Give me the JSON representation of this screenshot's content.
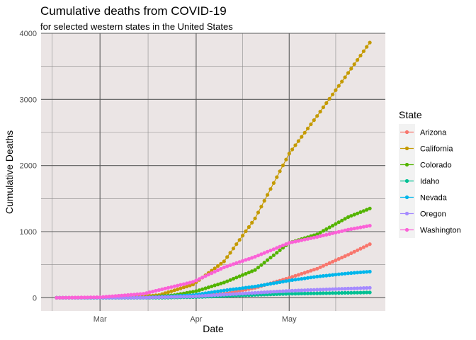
{
  "chart_data": {
    "type": "line",
    "title": "Cumulative deaths from COVID-19",
    "subtitle": "for selected western states in the United States",
    "xlabel": "Date",
    "ylabel": "Cumulative Deaths",
    "x_start": "2020-02-16",
    "x_end": "2020-05-27",
    "x_range": [
      "2020-02-11",
      "2020-06-01"
    ],
    "ylim": [
      -200,
      4000
    ],
    "yticks": [
      0,
      1000,
      2000,
      3000,
      4000
    ],
    "xticks": [
      {
        "date": "2020-03-01",
        "label": "Mar"
      },
      {
        "date": "2020-04-01",
        "label": "Apr"
      },
      {
        "date": "2020-05-01",
        "label": "May"
      }
    ],
    "legend": {
      "title": "State",
      "position": "right"
    },
    "panel_background": "#ebe5e5",
    "grid": true,
    "series": [
      {
        "name": "Arizona",
        "color": "#F8766D",
        "knots": [
          [
            "2020-02-16",
            0
          ],
          [
            "2020-03-15",
            0
          ],
          [
            "2020-03-31",
            20
          ],
          [
            "2020-04-10",
            60
          ],
          [
            "2020-04-20",
            150
          ],
          [
            "2020-05-01",
            300
          ],
          [
            "2020-05-10",
            440
          ],
          [
            "2020-05-20",
            650
          ],
          [
            "2020-05-27",
            810
          ]
        ]
      },
      {
        "name": "California",
        "color": "#C49A00",
        "knots": [
          [
            "2020-02-16",
            0
          ],
          [
            "2020-03-10",
            5
          ],
          [
            "2020-03-20",
            40
          ],
          [
            "2020-03-31",
            200
          ],
          [
            "2020-04-10",
            550
          ],
          [
            "2020-04-20",
            1200
          ],
          [
            "2020-05-01",
            2180
          ],
          [
            "2020-05-10",
            2750
          ],
          [
            "2020-05-20",
            3400
          ],
          [
            "2020-05-27",
            3860
          ]
        ]
      },
      {
        "name": "Colorado",
        "color": "#53B400",
        "knots": [
          [
            "2020-02-16",
            0
          ],
          [
            "2020-03-15",
            2
          ],
          [
            "2020-03-25",
            40
          ],
          [
            "2020-04-01",
            100
          ],
          [
            "2020-04-10",
            230
          ],
          [
            "2020-04-20",
            420
          ],
          [
            "2020-05-01",
            830
          ],
          [
            "2020-05-10",
            960
          ],
          [
            "2020-05-20",
            1220
          ],
          [
            "2020-05-27",
            1350
          ]
        ]
      },
      {
        "name": "Idaho",
        "color": "#00C094",
        "knots": [
          [
            "2020-02-16",
            0
          ],
          [
            "2020-03-20",
            0
          ],
          [
            "2020-04-01",
            10
          ],
          [
            "2020-04-15",
            35
          ],
          [
            "2020-05-01",
            60
          ],
          [
            "2020-05-27",
            80
          ]
        ]
      },
      {
        "name": "Nevada",
        "color": "#00B6EB",
        "knots": [
          [
            "2020-02-16",
            0
          ],
          [
            "2020-03-15",
            0
          ],
          [
            "2020-03-31",
            40
          ],
          [
            "2020-04-10",
            110
          ],
          [
            "2020-04-20",
            170
          ],
          [
            "2020-05-01",
            260
          ],
          [
            "2020-05-10",
            320
          ],
          [
            "2020-05-20",
            370
          ],
          [
            "2020-05-27",
            395
          ]
        ]
      },
      {
        "name": "Oregon",
        "color": "#A58AFF",
        "knots": [
          [
            "2020-02-16",
            0
          ],
          [
            "2020-03-15",
            3
          ],
          [
            "2020-03-31",
            20
          ],
          [
            "2020-04-15",
            60
          ],
          [
            "2020-05-01",
            105
          ],
          [
            "2020-05-15",
            130
          ],
          [
            "2020-05-27",
            150
          ]
        ]
      },
      {
        "name": "Washington",
        "color": "#FB61D7",
        "knots": [
          [
            "2020-02-16",
            0
          ],
          [
            "2020-03-01",
            8
          ],
          [
            "2020-03-15",
            60
          ],
          [
            "2020-03-31",
            240
          ],
          [
            "2020-04-10",
            460
          ],
          [
            "2020-04-20",
            620
          ],
          [
            "2020-05-01",
            830
          ],
          [
            "2020-05-10",
            920
          ],
          [
            "2020-05-20",
            1030
          ],
          [
            "2020-05-27",
            1090
          ]
        ]
      }
    ]
  }
}
